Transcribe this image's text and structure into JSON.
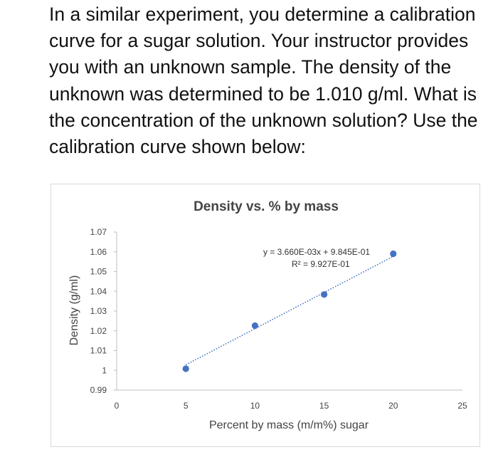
{
  "question": {
    "text": "In a similar experiment, you determine a calibration curve for a sugar solution.  Your instructor provides you with an unknown sample.  The density of the unknown was determined to be 1.010 g/ml.  What is the concentration of the unknown solution?  Use the calibration curve shown below:"
  },
  "chart_data": {
    "type": "scatter",
    "title": "Density vs. % by mass",
    "xlabel": "Percent by mass (m/m%) sugar",
    "ylabel": "Density (g/ml)",
    "xlim": [
      0,
      25
    ],
    "ylim": [
      0.99,
      1.07
    ],
    "x_ticks": [
      0,
      5,
      10,
      15,
      20,
      25
    ],
    "x_tick_labels": [
      "0",
      "5",
      "10",
      "15",
      "20",
      "25"
    ],
    "y_ticks": [
      0.99,
      1.0,
      1.01,
      1.02,
      1.03,
      1.04,
      1.05,
      1.06,
      1.07
    ],
    "y_tick_labels": [
      "0.99",
      "1",
      "1.01",
      "1.02",
      "1.03",
      "1.04",
      "1.05",
      "1.06",
      "1.07"
    ],
    "grid": false,
    "legend": "none",
    "points": [
      {
        "x": 5,
        "y": 1.0008
      },
      {
        "x": 10,
        "y": 1.0226
      },
      {
        "x": 15,
        "y": 1.0384
      },
      {
        "x": 20,
        "y": 1.059
      }
    ],
    "trendline": {
      "type": "linear",
      "slope": 0.00366,
      "intercept": 0.9845,
      "x_range": [
        5,
        20
      ],
      "style": "dotted"
    },
    "annotations": [
      {
        "text": "y = 3.660E-03x + 9.845E-01"
      },
      {
        "text": "R² = 9.927E-01"
      }
    ],
    "colors": {
      "points": "#4472c4",
      "trendline": "#4472c4",
      "axis": "#bfbfbf"
    }
  }
}
